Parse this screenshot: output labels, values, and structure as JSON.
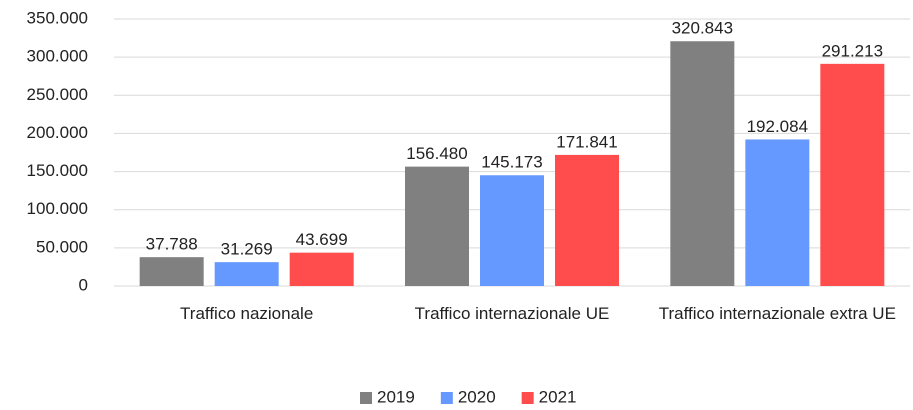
{
  "chart_data": {
    "type": "bar",
    "categories": [
      "Traffico nazionale",
      "Traffico internazionale UE",
      "Traffico internazionale extra UE"
    ],
    "series": [
      {
        "name": "2019",
        "color": "#808080",
        "values": [
          37788,
          156480,
          320843
        ],
        "value_labels": [
          "37.788",
          "156.480",
          "320.843"
        ]
      },
      {
        "name": "2020",
        "color": "#6699ff",
        "values": [
          31269,
          145173,
          192084
        ],
        "value_labels": [
          "31.269",
          "145.173",
          "192.084"
        ]
      },
      {
        "name": "2021",
        "color": "#ff4d4d",
        "values": [
          43699,
          171841,
          291213
        ],
        "value_labels": [
          "43.699",
          "171.841",
          "291.213"
        ]
      }
    ],
    "ylim": [
      0,
      350000
    ],
    "yticks": [
      0,
      {
        "value": 50000,
        "label": "50.000"
      },
      {
        "value": 100000,
        "label": "100.000"
      },
      {
        "value": 150000,
        "label": "150.000"
      },
      {
        "value": 200000,
        "label": "200.000"
      },
      {
        "value": 250000,
        "label": "250.000"
      },
      {
        "value": 300000,
        "label": "300.000"
      },
      {
        "value": 350000,
        "label": "350.000"
      }
    ],
    "grid": true,
    "legend": "bottom"
  }
}
